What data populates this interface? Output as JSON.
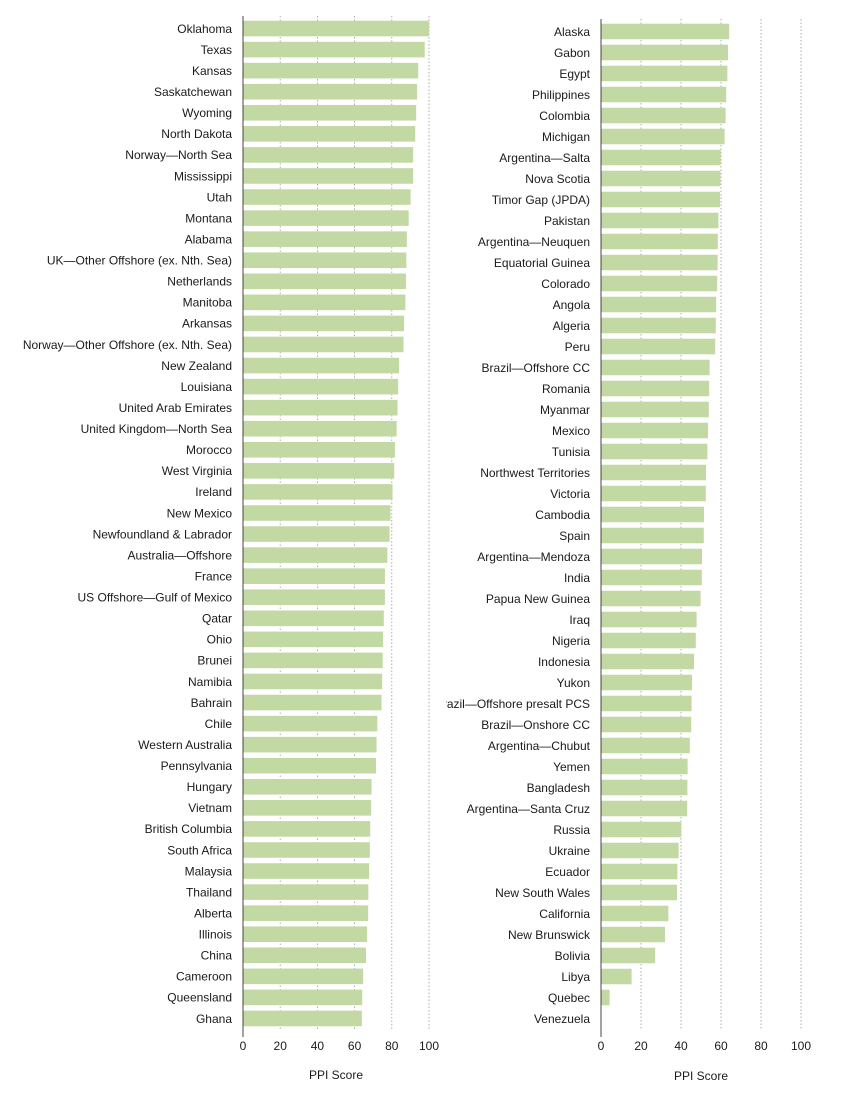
{
  "chart_data": [
    {
      "type": "bar",
      "orientation": "horizontal",
      "xlabel": "PPI Score",
      "xlim": [
        0,
        100
      ],
      "xticks": [
        0,
        20,
        40,
        60,
        80,
        100
      ],
      "grid": "vertical dotted",
      "bar_color": "#c3d9a3",
      "categories": [
        "Oklahoma",
        "Texas",
        "Kansas",
        "Saskatchewan",
        "Wyoming",
        "North Dakota",
        "Norway—North Sea",
        "Mississippi",
        "Utah",
        "Montana",
        "Alabama",
        "UK—Other Offshore (ex. Nth. Sea)",
        "Netherlands",
        "Manitoba",
        "Arkansas",
        "Norway—Other Offshore (ex. Nth. Sea)",
        "New Zealand",
        "Louisiana",
        "United Arab Emirates",
        "United Kingdom—North Sea",
        "Morocco",
        "West Virginia",
        "Ireland",
        "New Mexico",
        "Newfoundland & Labrador",
        "Australia—Offshore",
        "France",
        "US Offshore—Gulf of Mexico",
        "Qatar",
        "Ohio",
        "Brunei",
        "Namibia",
        "Bahrain",
        "Chile",
        "Western Australia",
        "Pennsylvania",
        "Hungary",
        "Vietnam",
        "British Columbia",
        "South Africa",
        "Malaysia",
        "Thailand",
        "Alberta",
        "Illinois",
        "China",
        "Cameroon",
        "Queensland",
        "Ghana"
      ],
      "values": [
        100,
        97.7,
        94.2,
        93.6,
        93.1,
        92.6,
        91.5,
        91.5,
        90.1,
        89.1,
        88.1,
        87.8,
        87.6,
        87.3,
        86.6,
        86.3,
        83.9,
        83.4,
        83.1,
        82.6,
        81.7,
        81.3,
        80.4,
        79.3,
        78.8,
        77.6,
        76.3,
        76.3,
        75.7,
        75.3,
        75.1,
        74.8,
        74.5,
        72.2,
        71.8,
        71.5,
        69.1,
        68.9,
        68.4,
        68.2,
        67.8,
        67.4,
        67.3,
        66.7,
        66.1,
        64.6,
        64.1,
        63.9
      ]
    },
    {
      "type": "bar",
      "orientation": "horizontal",
      "xlabel": "PPI Score",
      "xlim": [
        0,
        100
      ],
      "xticks": [
        0,
        20,
        40,
        60,
        80,
        100
      ],
      "grid": "vertical dotted",
      "bar_color": "#c3d9a3",
      "categories": [
        "Alaska",
        "Gabon",
        "Egypt",
        "Philippines",
        "Colombia",
        "Michigan",
        "Argentina—Salta",
        "Nova Scotia",
        "Timor Gap (JPDA)",
        "Pakistan",
        "Argentina—Neuquen",
        "Equatorial Guinea",
        "Colorado",
        "Angola",
        "Algeria",
        "Peru",
        "Brazil—Offshore CC",
        "Romania",
        "Myanmar",
        "Mexico",
        "Tunisia",
        "Northwest Territories",
        "Victoria",
        "Cambodia",
        "Spain",
        "Argentina—Mendoza",
        "India",
        "Papua New Guinea",
        "Iraq",
        "Nigeria",
        "Indonesia",
        "Yukon",
        "Brazil—Offshore presalt PCS",
        "Brazil—Onshore CC",
        "Argentina—Chubut",
        "Yemen",
        "Bangladesh",
        "Argentina—Santa Cruz",
        "Russia",
        "Ukraine",
        "Ecuador",
        "New South Wales",
        "California",
        "New Brunswick",
        "Bolivia",
        "Libya",
        "Quebec",
        "Venezuela"
      ],
      "values": [
        64.1,
        63.5,
        63.2,
        62.6,
        62.3,
        61.8,
        59.9,
        59.7,
        59.5,
        58.7,
        58.4,
        58.3,
        58.1,
        57.6,
        57.4,
        57.1,
        54.3,
        54.1,
        53.9,
        53.5,
        53.2,
        52.5,
        52.4,
        51.5,
        51.4,
        50.5,
        50.4,
        49.8,
        47.8,
        47.4,
        46.5,
        45.5,
        45.3,
        45.1,
        44.4,
        43.3,
        43.2,
        43.1,
        40.1,
        38.8,
        38.2,
        38.0,
        33.7,
        32.0,
        27.1,
        15.3,
        4.3,
        0.0
      ]
    }
  ]
}
